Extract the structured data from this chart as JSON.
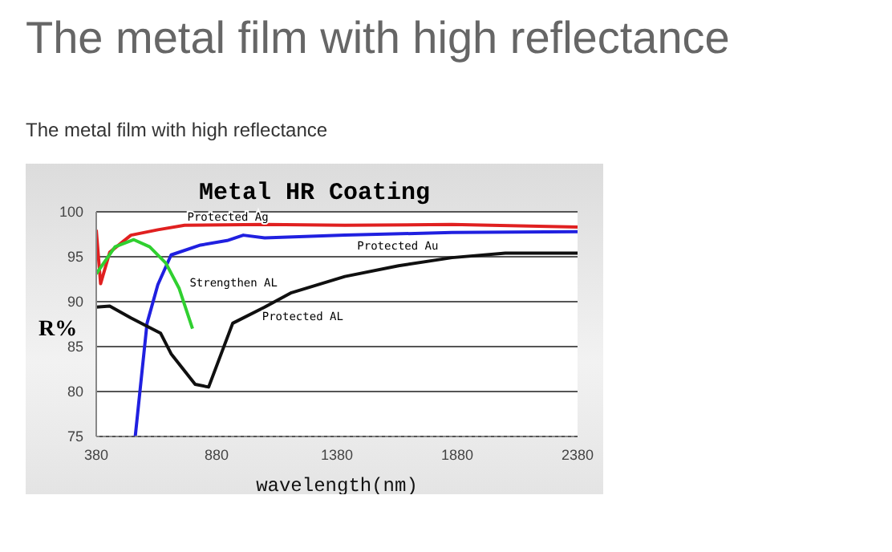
{
  "chart_data": {
    "type": "line",
    "title": "The metal film with high reflectance",
    "subtitle": "The metal film with high reflectance",
    "annotations": [
      "Metal HR Coating"
    ],
    "xlabel": "wavelength(nm)",
    "ylabel": "R%",
    "xlim": [
      380,
      2380
    ],
    "xticks": [
      380,
      880,
      1380,
      1880,
      2380
    ],
    "ylim": [
      75,
      100
    ],
    "yticks": [
      75,
      80,
      85,
      90,
      95,
      100
    ],
    "grid": "y",
    "marker": "none",
    "line_style": "solid",
    "series": [
      {
        "name": "Protected Ag",
        "color": "#e02020",
        "x": [
          380,
          398,
          436,
          524,
          636,
          747,
          1080,
          1413,
          1858,
          2380
        ],
        "values": [
          98,
          92,
          95.5,
          97.4,
          98,
          98.5,
          98.6,
          98.5,
          98.6,
          98.3
        ]
      },
      {
        "name": "Protected Au",
        "color": "#2020e0",
        "x": [
          542,
          591,
          636,
          691,
          813,
          924,
          991,
          1080,
          1413,
          1858,
          2380
        ],
        "values": [
          75,
          87.6,
          91.9,
          95.2,
          96.3,
          96.8,
          97.4,
          97.1,
          97.4,
          97.7,
          97.8
        ]
      },
      {
        "name": "Strengthen AL",
        "color": "#30d030",
        "x": [
          380,
          458,
          536,
          602,
          669,
          724,
          780
        ],
        "values": [
          93.1,
          96.1,
          96.9,
          96.1,
          94.3,
          91.5,
          87
        ]
      },
      {
        "name": "Protected AL",
        "color": "#101010",
        "x": [
          380,
          436,
          524,
          647,
          691,
          791,
          847,
          947,
          1080,
          1191,
          1413,
          1636,
          1858,
          2080,
          2380
        ],
        "values": [
          89.4,
          89.5,
          88.2,
          86.5,
          84.2,
          80.8,
          80.5,
          87.6,
          89.4,
          91,
          92.8,
          94,
          94.9,
          95.4,
          95.4
        ]
      }
    ]
  }
}
